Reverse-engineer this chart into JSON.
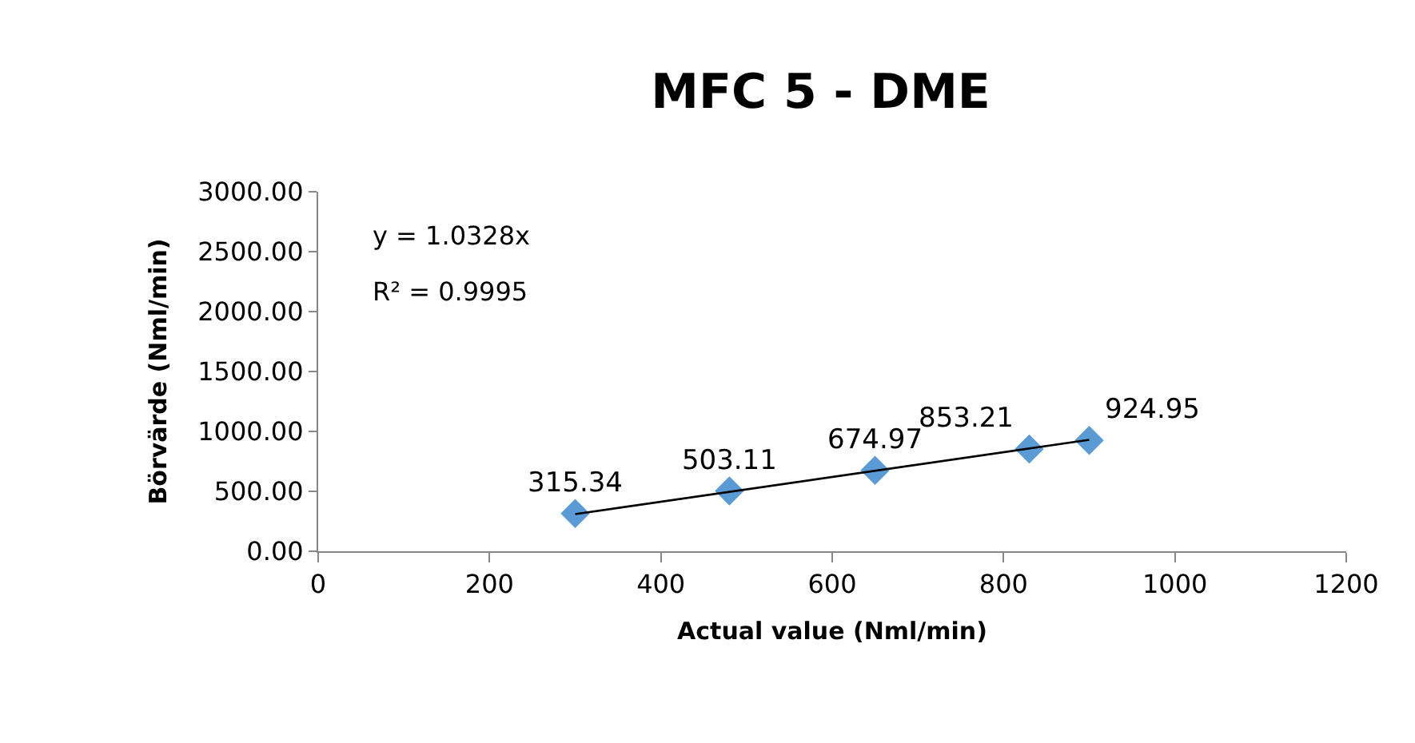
{
  "chart_data": {
    "type": "scatter",
    "title": "MFC 5 - DME",
    "xlabel": "Actual value (Nml/min)",
    "ylabel": "Börvärde (Nml/min)",
    "x": [
      300,
      480,
      650,
      830,
      900
    ],
    "series": [
      {
        "color": "#5b9bd5",
        "values": [
          315.34,
          503.11,
          674.97,
          853.21,
          924.95
        ],
        "marker": "diamond",
        "data_labels": true
      },
      {
        "type": "line",
        "color": "#000000",
        "x": [
          300,
          900
        ],
        "values": [
          310,
          930
        ],
        "marker": "none"
      }
    ],
    "xlim": [
      0,
      1200
    ],
    "xticks": [
      0,
      200,
      400,
      600,
      800,
      1000,
      1200
    ],
    "ylim": [
      0,
      3000
    ],
    "yticks": [
      {
        "value": 0,
        "label": "0.00"
      },
      {
        "value": 500,
        "label": "500.00"
      },
      {
        "value": 1000,
        "label": "1000.00"
      },
      {
        "value": 1500,
        "label": "1500.00"
      },
      {
        "value": 2000,
        "label": "2000.00"
      },
      {
        "value": 2500,
        "label": "2500.00"
      },
      {
        "value": 3000,
        "label": "3000.00"
      }
    ],
    "annotations": [
      "y = 1.0328x",
      "R² = 0.9995"
    ]
  }
}
